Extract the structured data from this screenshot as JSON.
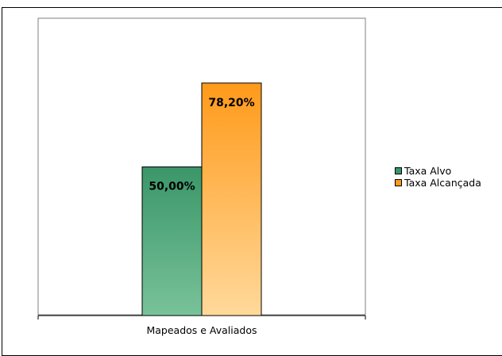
{
  "chart_data": {
    "type": "bar",
    "categories": [
      "Mapeados e Avaliados"
    ],
    "series": [
      {
        "name": "Taxa Alvo",
        "values": [
          50.0
        ],
        "label": "50,00%",
        "color_top": "#3a9668",
        "color_bottom": "#79c29a"
      },
      {
        "name": "Taxa Alcançada",
        "values": [
          78.2
        ],
        "label": "78,20%",
        "color_top": "#ff9a1a",
        "color_bottom": "#ffd99b"
      }
    ],
    "ylim": [
      0,
      100
    ],
    "legend_position": "right",
    "grid": false
  }
}
